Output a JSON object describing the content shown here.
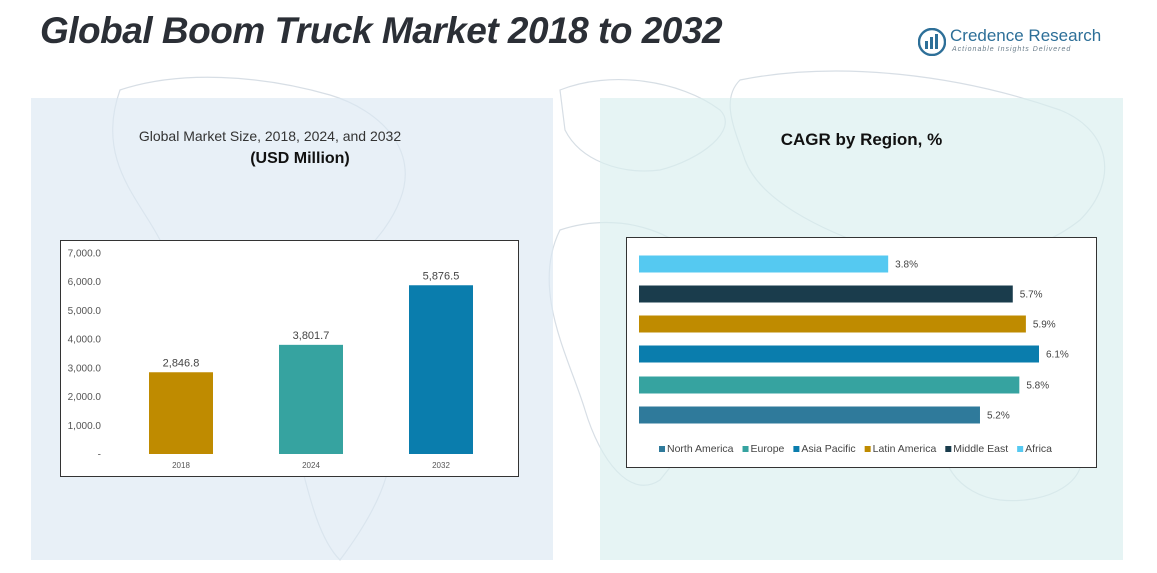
{
  "page": {
    "title": "Global Boom Truck Market 2018 to 2032",
    "logo": {
      "name": "Credence Research",
      "tagline": "Actionable Insights Delivered"
    }
  },
  "colors": {
    "gold": "#BF8B00",
    "teal": "#36A3A0",
    "blue": "#0A7DAD",
    "steel": "#2F7A9B",
    "navy": "#1A3C4C",
    "sky": "#55C9F1"
  },
  "chart_data": [
    {
      "type": "bar",
      "title": "Global Market Size, 2018, 2024, and 2032",
      "subtitle": "(USD Million)",
      "categories": [
        "2018",
        "2024",
        "2032"
      ],
      "values": [
        2846.8,
        3801.7,
        5876.5
      ],
      "value_labels": [
        "2,846.8",
        "3,801.7",
        "5,876.5"
      ],
      "ylim": [
        0,
        7000
      ],
      "yticks": [
        0,
        1000,
        2000,
        3000,
        4000,
        5000,
        6000,
        7000
      ],
      "ytick_labels": [
        "-",
        "1,000.0",
        "2,000.0",
        "3,000.0",
        "4,000.0",
        "5,000.0",
        "6,000.0",
        "7,000.0"
      ],
      "bar_colors": [
        "#BF8B00",
        "#36A3A0",
        "#0A7DAD"
      ],
      "xlabel": "",
      "ylabel": "",
      "grid": false
    },
    {
      "type": "bar",
      "orientation": "horizontal",
      "title": "CAGR by Region, %",
      "categories": [
        "North America",
        "Europe",
        "Asia Pacific",
        "Latin America",
        "Middle East",
        "Africa"
      ],
      "values": [
        5.2,
        5.8,
        6.1,
        5.9,
        5.7,
        3.8
      ],
      "value_labels": [
        "5.2%",
        "5.8%",
        "6.1%",
        "5.9%",
        "5.7%",
        "3.8%"
      ],
      "bar_colors": [
        "#2F7A9B",
        "#36A3A0",
        "#0A7DAD",
        "#BF8B00",
        "#1A3C4C",
        "#55C9F1"
      ],
      "xlim": [
        0,
        6.6
      ],
      "legend": "bottom",
      "grid": false
    }
  ]
}
